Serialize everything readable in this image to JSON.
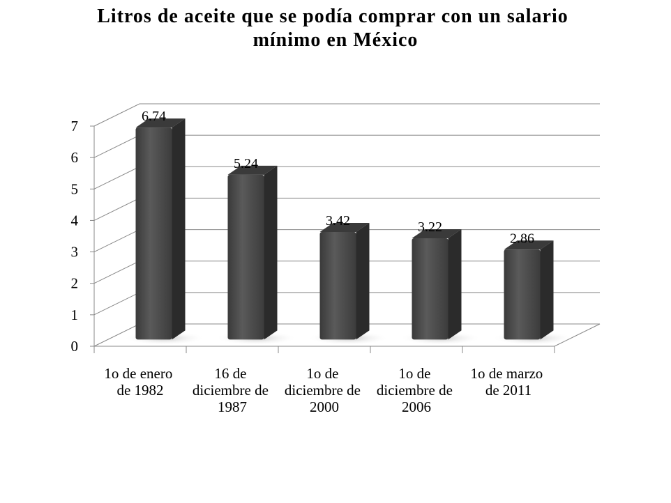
{
  "chart_data": {
    "type": "bar3d",
    "title": "Litros de aceite que se podía comprar con un salario mínimo en México",
    "categories": [
      "1o de enero de 1982",
      "16 de diciembre de 1987",
      "1o de diciembre de 2000",
      "1o de diciembre de 2006",
      "1o de marzo de 2011"
    ],
    "values": [
      6.74,
      5.24,
      3.42,
      3.22,
      2.86
    ],
    "color": "#4a4a4a",
    "ylim": [
      0,
      7
    ],
    "yticks": [
      0,
      1,
      2,
      3,
      4,
      5,
      6,
      7
    ],
    "grid": true
  }
}
